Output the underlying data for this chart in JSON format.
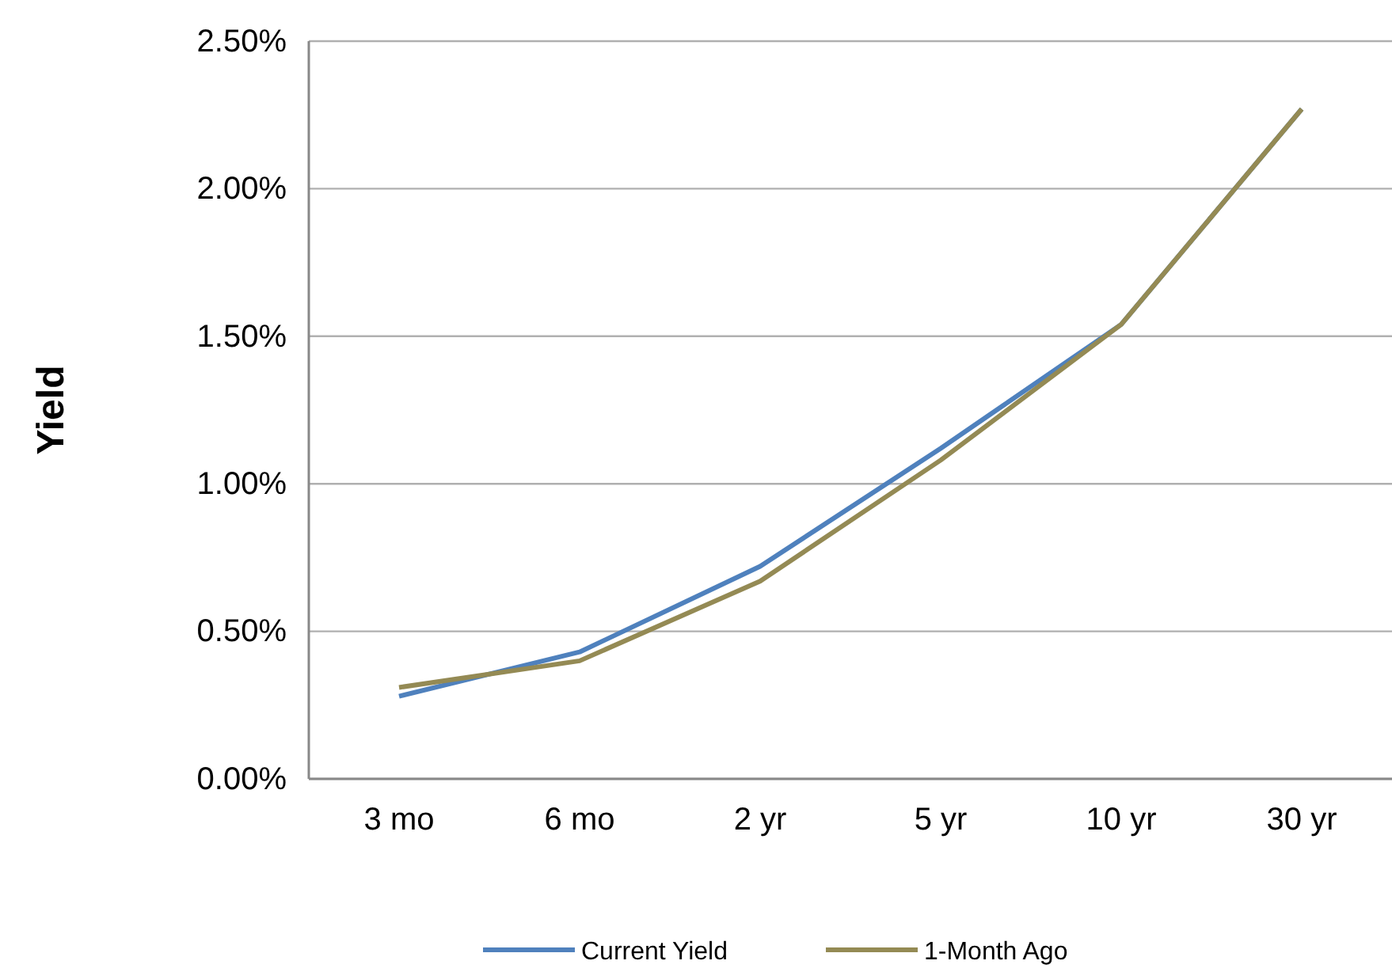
{
  "chart_data": {
    "type": "line",
    "ylabel": "Yield",
    "categories": [
      "3 mo",
      "6 mo",
      "2 yr",
      "5 yr",
      "10 yr",
      "30 yr"
    ],
    "series": [
      {
        "name": "Current Yield",
        "color": "#4f81bd",
        "values": [
          0.28,
          0.43,
          0.72,
          1.12,
          1.54,
          2.27
        ]
      },
      {
        "name": "1-Month Ago",
        "color": "#948a54",
        "values": [
          0.31,
          0.4,
          0.67,
          1.08,
          1.54,
          2.27
        ]
      }
    ],
    "ylim": [
      0,
      2.5
    ],
    "yticks": [
      {
        "value": 0,
        "label": "0.00%"
      },
      {
        "value": 0.5,
        "label": "0.50%"
      },
      {
        "value": 1,
        "label": "1.00%"
      },
      {
        "value": 1.5,
        "label": "1.50%"
      },
      {
        "value": 2,
        "label": "2.00%"
      },
      {
        "value": 2.5,
        "label": "2.50%"
      }
    ],
    "grid": "y",
    "legend": "bottom",
    "marker": "none",
    "line_style": "solid"
  }
}
